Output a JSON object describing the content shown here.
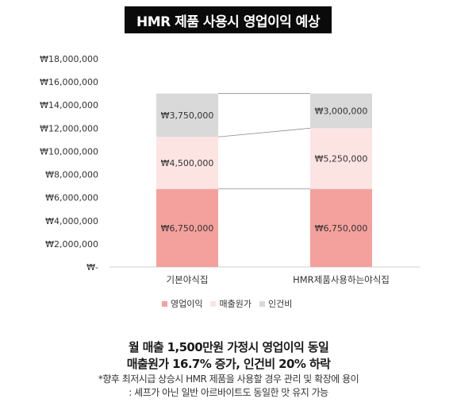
{
  "title": "HMR 제품 사용시 영업이익 예상",
  "colors": {
    "operating_profit": "#F4A19D",
    "cost_of_sales": "#FCE4E2",
    "labor_cost": "#D9D9D9",
    "connector": "#8c8c8c"
  },
  "chart_data": {
    "type": "bar",
    "stacked": true,
    "categories": [
      "기본야식집",
      "HMR제품사용하는야식집"
    ],
    "series": [
      {
        "name": "영업이익",
        "values": [
          6750000,
          6750000
        ],
        "labels": [
          "₩6,750,000",
          "₩6,750,000"
        ]
      },
      {
        "name": "매출원가",
        "values": [
          4500000,
          5250000
        ],
        "labels": [
          "₩4,500,000",
          "₩5,250,000"
        ]
      },
      {
        "name": "인건비",
        "values": [
          3750000,
          3000000
        ],
        "labels": [
          "₩3,750,000",
          "₩3,000,000"
        ]
      }
    ],
    "ylim": [
      0,
      18000000
    ],
    "yticks": [
      0,
      2000000,
      4000000,
      6000000,
      8000000,
      10000000,
      12000000,
      14000000,
      16000000,
      18000000
    ],
    "ytick_labels": [
      "₩-",
      "₩2,000,000",
      "₩4,000,000",
      "₩6,000,000",
      "₩8,000,000",
      "₩10,000,000",
      "₩12,000,000",
      "₩14,000,000",
      "₩16,000,000",
      "₩18,000,000"
    ],
    "grid": false,
    "legend_position": "bottom",
    "series_lines": true
  },
  "legend": [
    {
      "label": "영업이익",
      "color_key": "operating_profit"
    },
    {
      "label": "매출원가",
      "color_key": "cost_of_sales"
    },
    {
      "label": "인건비",
      "color_key": "labor_cost"
    }
  ],
  "caption": {
    "line1": "월 매출 1,500만원 가정시 영업이익 동일",
    "line2": "매출원가 16.7% 증가, 인건비 20% 하락",
    "note1": "*향후 최저시급 상승시 HMR 제품을 사용할 경우 관리 및 확장에 용이",
    "note2": ": 셰프가 아닌 일반 아르바이트도 동일한 맛 유지 가능"
  }
}
